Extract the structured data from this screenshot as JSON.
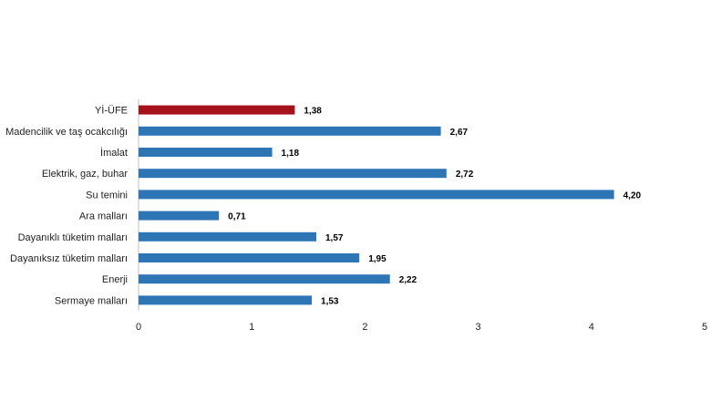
{
  "chart_data": {
    "type": "bar",
    "orientation": "horizontal",
    "categories": [
      "Yİ-ÜFE",
      "Madencilik ve taş ocakcılığı",
      "İmalat",
      "Elektrik, gaz, buhar",
      "Su temini",
      "Ara malları",
      "Dayanıklı tüketim malları",
      "Dayanıksız tüketim malları",
      "Enerji",
      "Sermaye malları"
    ],
    "values": [
      1.38,
      2.67,
      1.18,
      2.72,
      4.2,
      0.71,
      1.57,
      1.95,
      2.22,
      1.53
    ],
    "value_labels": [
      "1,38",
      "2,67",
      "1,18",
      "2,72",
      "4,20",
      "0,71",
      "1,57",
      "1,95",
      "2,22",
      "1,53"
    ],
    "highlight_index": 0,
    "colors": {
      "default": "#2E75B6",
      "highlight": "#A6121C"
    },
    "xlim": [
      0,
      5
    ],
    "xticks": [
      "0",
      "1",
      "2",
      "3",
      "4",
      "5"
    ],
    "grid": false,
    "legend": "none",
    "title": "",
    "xlabel": "",
    "ylabel": ""
  }
}
